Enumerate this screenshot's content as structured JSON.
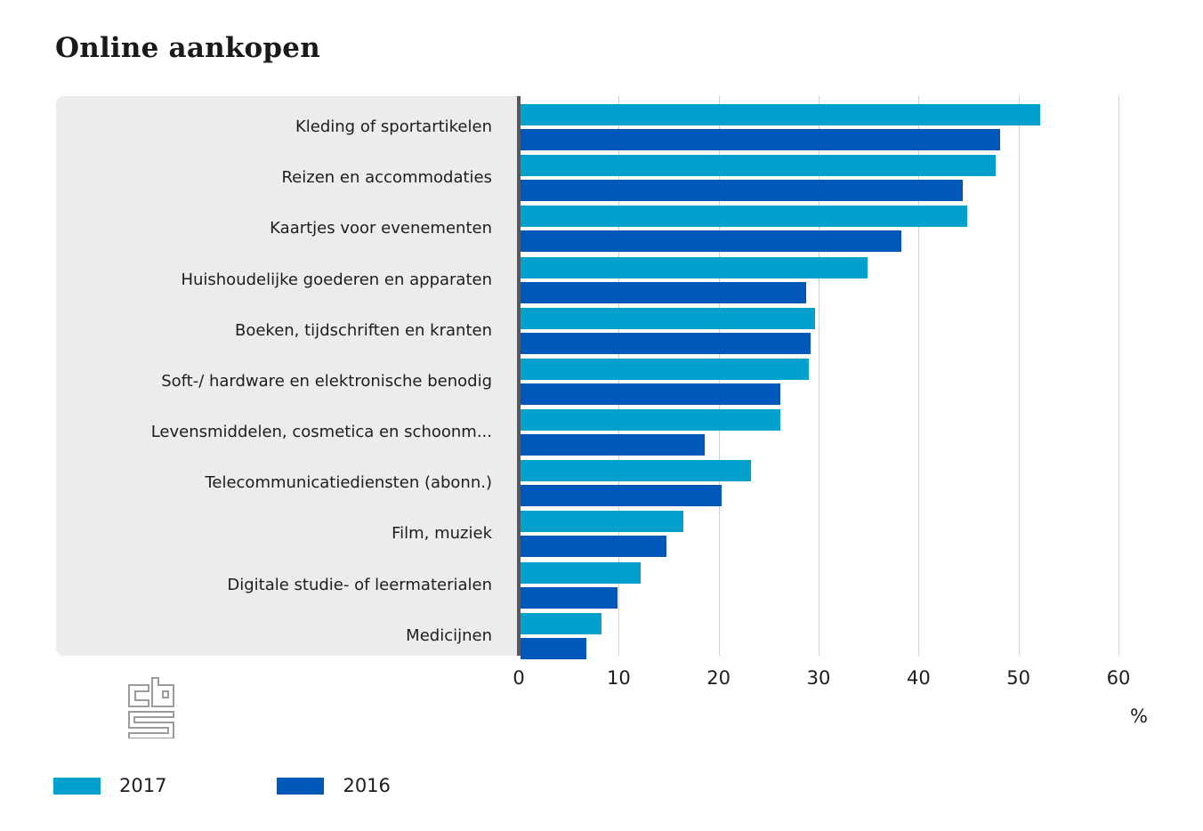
{
  "header": {
    "title": "Online aankopen"
  },
  "chart_data": {
    "type": "bar",
    "orientation": "horizontal",
    "title": "Online aankopen",
    "unit": "%",
    "axis": {
      "min": 0,
      "max": 60,
      "ticks": [
        0,
        10,
        20,
        30,
        40,
        50,
        60
      ]
    },
    "grid": true,
    "legend_position": "bottom",
    "categories": [
      "Kleding of sportartikelen",
      "Reizen en accommodaties",
      "Kaartjes voor evenementen",
      "Huishoudelijke goederen en apparaten",
      "Boeken, tijdschriften en kranten",
      "Soft-/ hardware en elektronische benodig",
      "Levensmiddelen, cosmetica en schoonm...",
      "Telecommunicatiediensten (abonn.)",
      "Film, muziek",
      "Digitale studie- of leermaterialen",
      "Medicijnen"
    ],
    "series": [
      {
        "name": "2017",
        "color": "#00a1cd",
        "values": [
          52.0,
          47.5,
          44.7,
          34.7,
          29.5,
          28.8,
          26.0,
          23.1,
          16.3,
          12.0,
          8.1
        ]
      },
      {
        "name": "2016",
        "color": "#0058b8",
        "values": [
          48.0,
          44.2,
          38.1,
          28.6,
          29.0,
          26.0,
          18.4,
          20.1,
          14.6,
          9.7,
          6.6
        ]
      }
    ],
    "legend": [
      {
        "label": "2017",
        "color": "#00a1cd"
      },
      {
        "label": "2016",
        "color": "#0058b8"
      }
    ]
  },
  "colors": {
    "panel_bg": "#ececec",
    "axis_line": "#55585c",
    "gridline": "#d2d2d2",
    "text": "#1d1d1d",
    "menu_icon": "#58585a",
    "logo": "#9b9b9b"
  },
  "icons": {
    "menu": "hamburger-icon",
    "logo": "cbs-logo"
  }
}
